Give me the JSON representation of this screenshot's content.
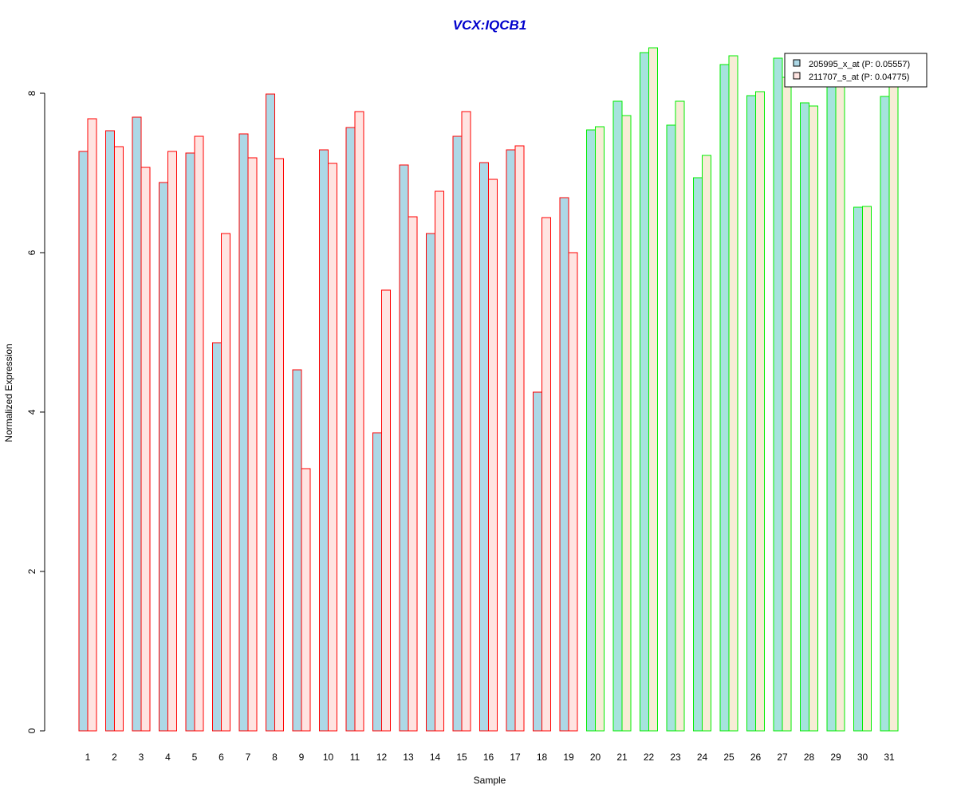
{
  "chart_data": {
    "type": "bar",
    "title": "VCX:IQCB1",
    "xlabel": "Sample",
    "ylabel": "Normalized Expression",
    "ylim": [
      0,
      8.6
    ],
    "yticks": [
      0,
      2,
      4,
      6,
      8
    ],
    "categories": [
      "1",
      "2",
      "3",
      "4",
      "5",
      "6",
      "7",
      "8",
      "9",
      "10",
      "11",
      "12",
      "13",
      "14",
      "15",
      "16",
      "17",
      "18",
      "19",
      "20",
      "21",
      "22",
      "23",
      "24",
      "25",
      "26",
      "27",
      "28",
      "29",
      "30",
      "31"
    ],
    "series": [
      {
        "name": "205995_x_at (P: 0.05557)",
        "values": [
          7.27,
          7.53,
          7.7,
          6.88,
          7.25,
          4.87,
          7.49,
          7.99,
          4.53,
          7.29,
          7.57,
          3.74,
          7.1,
          6.24,
          7.46,
          7.13,
          7.29,
          4.25,
          6.69,
          7.54,
          7.9,
          8.51,
          7.6,
          6.94,
          8.36,
          7.97,
          8.44,
          7.88,
          8.2,
          6.57,
          7.96
        ]
      },
      {
        "name": "211707_s_at (P: 0.04775)",
        "values": [
          7.68,
          7.33,
          7.07,
          7.27,
          7.46,
          6.24,
          7.19,
          7.18,
          3.29,
          7.12,
          7.77,
          5.53,
          6.45,
          6.77,
          7.77,
          6.92,
          7.34,
          6.44,
          6.0,
          7.58,
          7.72,
          8.57,
          7.9,
          7.22,
          8.47,
          8.02,
          8.2,
          7.84,
          8.2,
          6.58,
          8.08
        ]
      }
    ],
    "group_split_after": 19,
    "colors": {
      "title": "#0000cc",
      "series1_fill": "#add8e6",
      "series2_fill": "#ffe4e1",
      "group1_border": "#ff0000",
      "group2_border": "#00ee00",
      "group2_fill1": "#a6e3dd",
      "group2_fill2": "#f7ecd6"
    },
    "legend_position": "top-right",
    "grid": false
  }
}
